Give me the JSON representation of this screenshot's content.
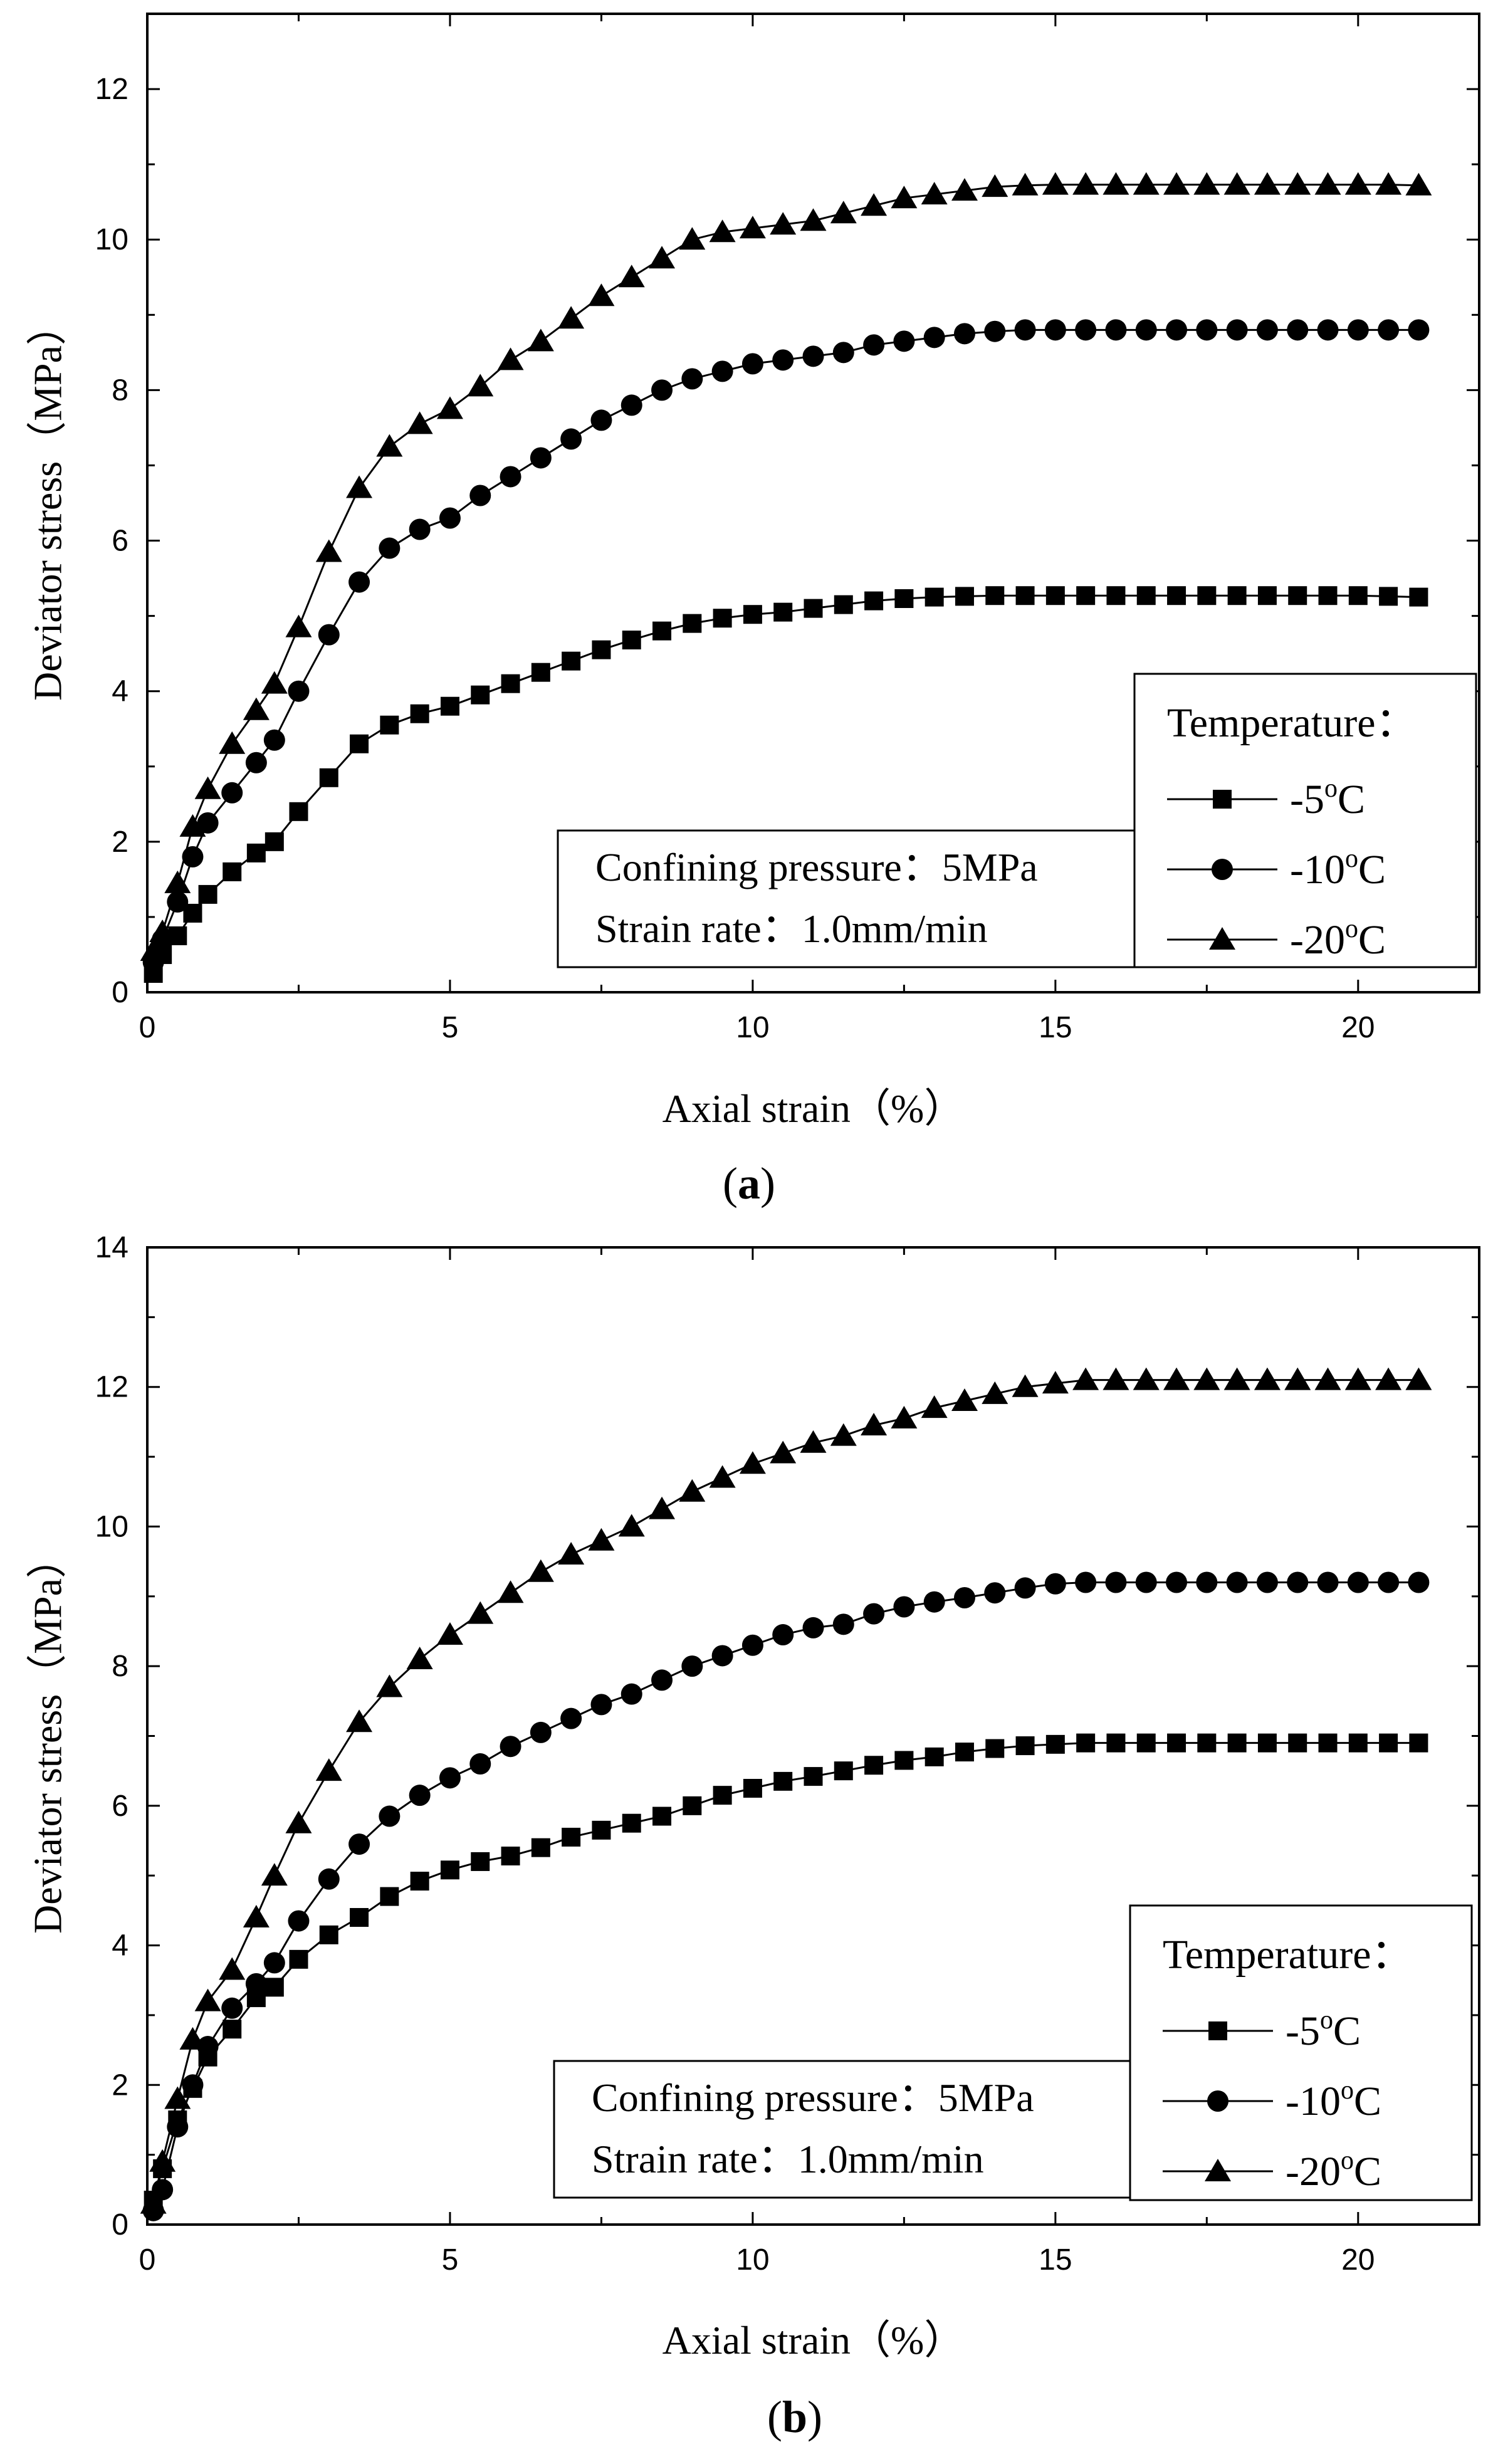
{
  "chart_data": [
    {
      "type": "line",
      "panel": "a",
      "xlabel": "Axial strain（%）",
      "ylabel": "Deviator stress（MPa）",
      "xlim": [
        0,
        22
      ],
      "ylim": [
        0,
        13
      ],
      "xticks": [
        0,
        5,
        10,
        15,
        20
      ],
      "yticks": [
        0,
        2,
        4,
        6,
        8,
        10,
        12
      ],
      "legend_title": "Temperature：",
      "legend_position": "bottom-right",
      "annotation": [
        "Confining pressure：5MPa",
        "Strain rate：1.0mm/min"
      ],
      "series": [
        {
          "name": "-5°C",
          "label_main": "-5",
          "label_sup": "o",
          "label_unit": "C",
          "marker": "square",
          "x": [
            0.1,
            0.25,
            0.5,
            0.75,
            1.0,
            1.4,
            1.8,
            2.1,
            2.5,
            3.0,
            3.5,
            4.0,
            4.5,
            5.0,
            5.5,
            6.0,
            6.5,
            7.0,
            7.5,
            8.0,
            8.5,
            9.0,
            9.5,
            10.0,
            10.5,
            11.0,
            11.5,
            12.0,
            12.5,
            13.0,
            13.5,
            14.0,
            14.5,
            15.0,
            15.5,
            16.0,
            16.5,
            17.0,
            17.5,
            18.0,
            18.5,
            19.0,
            19.5,
            20.0,
            20.5,
            21.0
          ],
          "y": [
            0.25,
            0.5,
            0.75,
            1.05,
            1.3,
            1.6,
            1.85,
            2.0,
            2.4,
            2.85,
            3.3,
            3.55,
            3.7,
            3.8,
            3.95,
            4.1,
            4.25,
            4.4,
            4.55,
            4.68,
            4.8,
            4.9,
            4.97,
            5.02,
            5.05,
            5.1,
            5.15,
            5.2,
            5.23,
            5.25,
            5.26,
            5.27,
            5.27,
            5.27,
            5.27,
            5.27,
            5.27,
            5.27,
            5.27,
            5.27,
            5.27,
            5.27,
            5.27,
            5.27,
            5.26,
            5.25
          ]
        },
        {
          "name": "-10°C",
          "label_main": "-10",
          "label_sup": "o",
          "label_unit": "C",
          "marker": "circle",
          "x": [
            0.1,
            0.25,
            0.5,
            0.75,
            1.0,
            1.4,
            1.8,
            2.1,
            2.5,
            3.0,
            3.5,
            4.0,
            4.5,
            5.0,
            5.5,
            6.0,
            6.5,
            7.0,
            7.5,
            8.0,
            8.5,
            9.0,
            9.5,
            10.0,
            10.5,
            11.0,
            11.5,
            12.0,
            12.5,
            13.0,
            13.5,
            14.0,
            14.5,
            15.0,
            15.5,
            16.0,
            16.5,
            17.0,
            17.5,
            18.0,
            18.5,
            19.0,
            19.5,
            20.0,
            20.5,
            21.0
          ],
          "y": [
            0.4,
            0.7,
            1.2,
            1.8,
            2.25,
            2.65,
            3.05,
            3.35,
            4.0,
            4.75,
            5.45,
            5.9,
            6.15,
            6.3,
            6.6,
            6.85,
            7.1,
            7.35,
            7.6,
            7.8,
            8.0,
            8.15,
            8.25,
            8.35,
            8.4,
            8.45,
            8.5,
            8.6,
            8.65,
            8.7,
            8.75,
            8.78,
            8.8,
            8.8,
            8.8,
            8.8,
            8.8,
            8.8,
            8.8,
            8.8,
            8.8,
            8.8,
            8.8,
            8.8,
            8.8,
            8.8
          ]
        },
        {
          "name": "-20°C",
          "label_main": "-20",
          "label_sup": "o",
          "label_unit": "C",
          "marker": "triangle",
          "x": [
            0.1,
            0.25,
            0.5,
            0.75,
            1.0,
            1.4,
            1.8,
            2.1,
            2.5,
            3.0,
            3.5,
            4.0,
            4.5,
            5.0,
            5.5,
            6.0,
            6.5,
            7.0,
            7.5,
            8.0,
            8.5,
            9.0,
            9.5,
            10.0,
            10.5,
            11.0,
            11.5,
            12.0,
            12.5,
            13.0,
            13.5,
            14.0,
            14.5,
            15.0,
            15.5,
            16.0,
            16.5,
            17.0,
            17.5,
            18.0,
            18.5,
            19.0,
            19.5,
            20.0,
            20.5,
            21.0
          ],
          "y": [
            0.55,
            0.8,
            1.45,
            2.2,
            2.7,
            3.3,
            3.75,
            4.1,
            4.85,
            5.85,
            6.7,
            7.25,
            7.55,
            7.75,
            8.05,
            8.4,
            8.65,
            8.95,
            9.25,
            9.5,
            9.75,
            10.0,
            10.1,
            10.15,
            10.2,
            10.25,
            10.35,
            10.45,
            10.55,
            10.6,
            10.65,
            10.7,
            10.72,
            10.73,
            10.73,
            10.73,
            10.73,
            10.73,
            10.73,
            10.73,
            10.73,
            10.73,
            10.73,
            10.73,
            10.73,
            10.72
          ]
        }
      ]
    },
    {
      "type": "line",
      "panel": "b",
      "xlabel": "Axial strain（%）",
      "ylabel": "Deviator stress（MPa）",
      "xlim": [
        0,
        22
      ],
      "ylim": [
        0,
        14
      ],
      "xticks": [
        0,
        5,
        10,
        15,
        20
      ],
      "yticks": [
        0,
        2,
        4,
        6,
        8,
        10,
        12,
        14
      ],
      "legend_title": "Temperature：",
      "legend_position": "bottom-right",
      "annotation": [
        "Confining pressure：5MPa",
        "Strain rate：1.0mm/min"
      ],
      "series": [
        {
          "name": "-5°C",
          "label_main": "-5",
          "label_sup": "o",
          "label_unit": "C",
          "marker": "square",
          "x": [
            0.1,
            0.25,
            0.5,
            0.75,
            1.0,
            1.4,
            1.8,
            2.1,
            2.5,
            3.0,
            3.5,
            4.0,
            4.5,
            5.0,
            5.5,
            6.0,
            6.5,
            7.0,
            7.5,
            8.0,
            8.5,
            9.0,
            9.5,
            10.0,
            10.5,
            11.0,
            11.5,
            12.0,
            12.5,
            13.0,
            13.5,
            14.0,
            14.5,
            15.0,
            15.5,
            16.0,
            16.5,
            17.0,
            17.5,
            18.0,
            18.5,
            19.0,
            19.5,
            20.0,
            20.5,
            21.0
          ],
          "y": [
            0.35,
            0.8,
            1.5,
            1.95,
            2.4,
            2.8,
            3.25,
            3.4,
            3.8,
            4.15,
            4.4,
            4.7,
            4.92,
            5.08,
            5.2,
            5.28,
            5.4,
            5.55,
            5.65,
            5.75,
            5.85,
            6.0,
            6.15,
            6.25,
            6.35,
            6.42,
            6.5,
            6.58,
            6.65,
            6.7,
            6.77,
            6.82,
            6.86,
            6.88,
            6.9,
            6.9,
            6.9,
            6.9,
            6.9,
            6.9,
            6.9,
            6.9,
            6.9,
            6.9,
            6.9,
            6.9
          ]
        },
        {
          "name": "-10°C",
          "label_main": "-10",
          "label_sup": "o",
          "label_unit": "C",
          "marker": "circle",
          "x": [
            0.1,
            0.25,
            0.5,
            0.75,
            1.0,
            1.4,
            1.8,
            2.1,
            2.5,
            3.0,
            3.5,
            4.0,
            4.5,
            5.0,
            5.5,
            6.0,
            6.5,
            7.0,
            7.5,
            8.0,
            8.5,
            9.0,
            9.5,
            10.0,
            10.5,
            11.0,
            11.5,
            12.0,
            12.5,
            13.0,
            13.5,
            14.0,
            14.5,
            15.0,
            15.5,
            16.0,
            16.5,
            17.0,
            17.5,
            18.0,
            18.5,
            19.0,
            19.5,
            20.0,
            20.5,
            21.0
          ],
          "y": [
            0.2,
            0.5,
            1.4,
            2.0,
            2.55,
            3.1,
            3.45,
            3.75,
            4.35,
            4.95,
            5.45,
            5.85,
            6.15,
            6.4,
            6.6,
            6.85,
            7.05,
            7.25,
            7.45,
            7.6,
            7.8,
            8.0,
            8.15,
            8.3,
            8.45,
            8.55,
            8.6,
            8.75,
            8.85,
            8.92,
            8.98,
            9.05,
            9.12,
            9.18,
            9.2,
            9.2,
            9.2,
            9.2,
            9.2,
            9.2,
            9.2,
            9.2,
            9.2,
            9.2,
            9.2,
            9.2
          ]
        },
        {
          "name": "-20°C",
          "label_main": "-20",
          "label_sup": "o",
          "label_unit": "C",
          "marker": "triangle",
          "x": [
            0.1,
            0.25,
            0.5,
            0.75,
            1.0,
            1.4,
            1.8,
            2.1,
            2.5,
            3.0,
            3.5,
            4.0,
            4.5,
            5.0,
            5.5,
            6.0,
            6.5,
            7.0,
            7.5,
            8.0,
            8.5,
            9.0,
            9.5,
            10.0,
            10.5,
            11.0,
            11.5,
            12.0,
            12.5,
            13.0,
            13.5,
            14.0,
            14.5,
            15.0,
            15.5,
            16.0,
            16.5,
            17.0,
            17.5,
            18.0,
            18.5,
            19.0,
            19.5,
            20.0,
            20.5,
            21.0
          ],
          "y": [
            0.3,
            0.9,
            1.8,
            2.65,
            3.2,
            3.65,
            4.4,
            5.0,
            5.75,
            6.5,
            7.2,
            7.7,
            8.1,
            8.45,
            8.75,
            9.05,
            9.35,
            9.6,
            9.8,
            10.0,
            10.25,
            10.5,
            10.7,
            10.9,
            11.05,
            11.2,
            11.3,
            11.45,
            11.55,
            11.7,
            11.8,
            11.9,
            12.0,
            12.05,
            12.1,
            12.1,
            12.1,
            12.1,
            12.1,
            12.1,
            12.1,
            12.1,
            12.1,
            12.1,
            12.1,
            12.1
          ]
        }
      ]
    }
  ],
  "captions": [
    {
      "open": "(",
      "letter": "a",
      "close": ")"
    },
    {
      "open": "(",
      "letter": "b",
      "close": ")"
    }
  ]
}
